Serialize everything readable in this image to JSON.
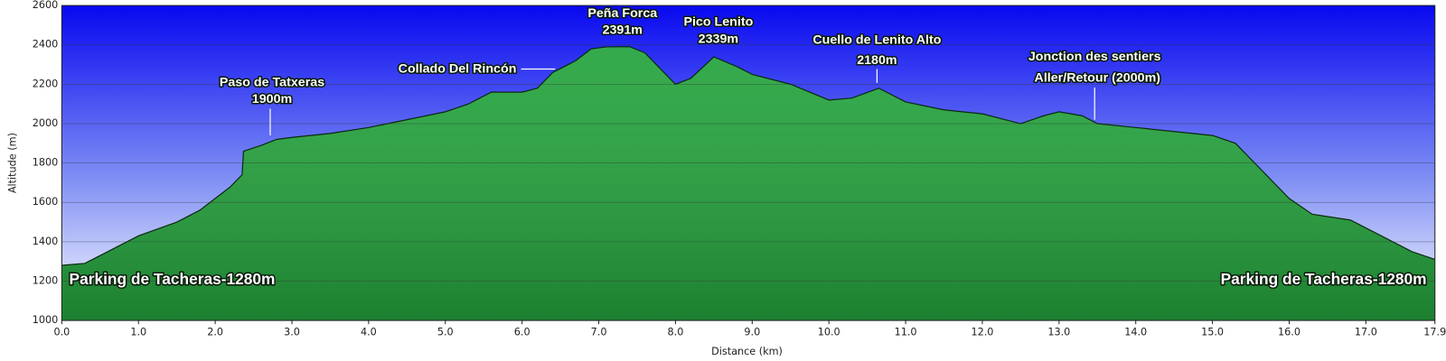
{
  "chart_data": {
    "type": "area",
    "xlabel": "Distance (km)",
    "ylabel": "Altitude (m)",
    "x": [
      0,
      0.3,
      0.5,
      1.0,
      1.5,
      1.8,
      2.0,
      2.2,
      2.35,
      2.37,
      2.6,
      2.8,
      3.0,
      3.5,
      4.0,
      4.5,
      5.0,
      5.3,
      5.6,
      6.0,
      6.2,
      6.4,
      6.7,
      6.9,
      7.1,
      7.4,
      7.6,
      7.8,
      8.0,
      8.2,
      8.5,
      8.8,
      9.0,
      9.5,
      10.0,
      10.3,
      10.65,
      11.0,
      11.5,
      12.0,
      12.5,
      12.8,
      13.0,
      13.3,
      13.5,
      14.0,
      14.5,
      15.0,
      15.3,
      15.6,
      16.0,
      16.3,
      16.8,
      17.2,
      17.6,
      17.9
    ],
    "values": [
      1280,
      1290,
      1330,
      1430,
      1500,
      1560,
      1620,
      1680,
      1740,
      1860,
      1890,
      1920,
      1930,
      1950,
      1980,
      2020,
      2060,
      2100,
      2160,
      2160,
      2180,
      2260,
      2320,
      2380,
      2390,
      2391,
      2360,
      2280,
      2200,
      2230,
      2339,
      2290,
      2250,
      2200,
      2120,
      2130,
      2180,
      2110,
      2070,
      2050,
      2000,
      2040,
      2060,
      2040,
      2000,
      1980,
      1960,
      1940,
      1900,
      1780,
      1620,
      1540,
      1510,
      1430,
      1350,
      1310
    ],
    "color": "#23a33c",
    "xlim": [
      0,
      17.9
    ],
    "xticks": [
      {
        "value": 0,
        "label": "0.0"
      },
      {
        "value": 1,
        "label": "1.0"
      },
      {
        "value": 2,
        "label": "2.0"
      },
      {
        "value": 3,
        "label": "3.0"
      },
      {
        "value": 4,
        "label": "4.0"
      },
      {
        "value": 5,
        "label": "5.0"
      },
      {
        "value": 6,
        "label": "6.0"
      },
      {
        "value": 7,
        "label": "7.0"
      },
      {
        "value": 8,
        "label": "8.0"
      },
      {
        "value": 9,
        "label": "9.0"
      },
      {
        "value": 10,
        "label": "10.0"
      },
      {
        "value": 11,
        "label": "11.0"
      },
      {
        "value": 12,
        "label": "12.0"
      },
      {
        "value": 13,
        "label": "13.0"
      },
      {
        "value": 14,
        "label": "14.0"
      },
      {
        "value": 15,
        "label": "15.0"
      },
      {
        "value": 16,
        "label": "16.0"
      },
      {
        "value": 17,
        "label": "17.0"
      },
      17.9
    ],
    "ylim": [
      1000,
      2600
    ],
    "yticks": [
      1000,
      1200,
      1400,
      1600,
      1800,
      2000,
      2200,
      2400,
      2600
    ],
    "grid": true,
    "annotations": [
      "Paso de Tatxeras",
      "1900m",
      "Collado Del Rincón",
      "Peña Forca",
      "2391m",
      "Pico Lenito",
      "2339m",
      "Cuello de Lenito Alto",
      "2180m",
      "Jonction des sentiers",
      "Aller/Retour (2000m)",
      "Parking de Tacheras-1280m",
      "Parking de Tacheras-1280m"
    ]
  }
}
